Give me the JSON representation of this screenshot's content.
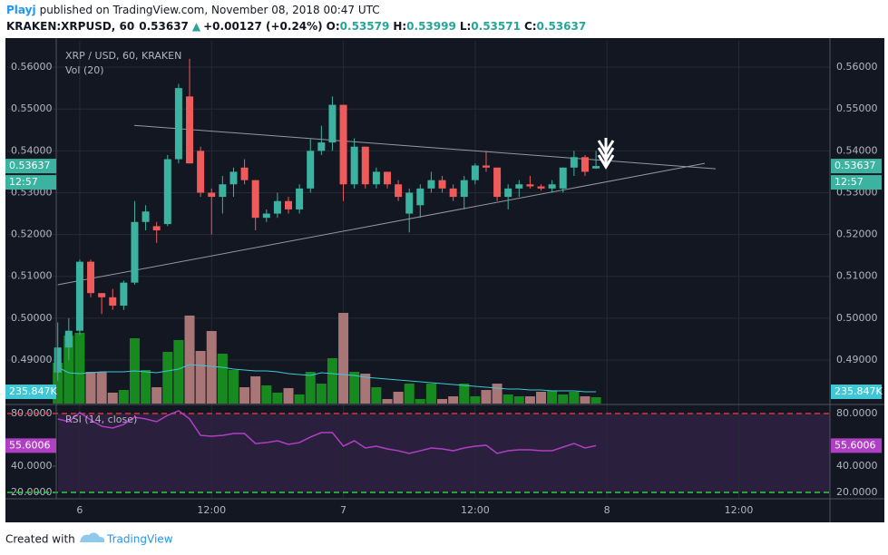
{
  "header": {
    "author": "Playj",
    "published": "published on TradingView.com, November 08, 2018 00:47 UTC",
    "symbol": "KRAKEN:XRPUSD, 60",
    "last": "0.53637",
    "arrow": "▲",
    "change": "+0.00127 (+0.24%)",
    "o_label": "O:",
    "o": "0.53579",
    "h_label": "H:",
    "h": "0.53999",
    "l_label": "L:",
    "l": "0.53571",
    "c_label": "C:",
    "c": "0.53637"
  },
  "footer": {
    "created": "Created with",
    "brand": "TradingView"
  },
  "chart_data": {
    "type": "candlestick",
    "title": "XRP / USD, 60, KRAKEN",
    "volume_title": "Vol (20)",
    "rsi_title": "RSI (14, close)",
    "up_color": "#3bb3a0",
    "down_color": "#ef5a5a",
    "x": [
      -2,
      -1,
      0,
      1,
      2,
      3,
      4,
      5,
      6,
      7,
      8,
      9,
      10,
      11,
      12,
      13,
      14,
      15,
      16,
      17,
      18,
      19,
      20,
      21,
      22,
      23,
      24,
      25,
      26,
      27,
      28,
      29,
      30,
      31,
      32,
      33,
      34,
      35,
      36,
      37,
      38,
      39,
      40,
      41,
      42,
      43,
      44,
      45,
      46,
      47
    ],
    "candles": {
      "open": [
        0.487,
        0.493,
        0.497,
        0.5135,
        0.506,
        0.505,
        0.503,
        0.5085,
        0.523,
        0.522,
        0.5225,
        0.538,
        0.553,
        0.54,
        0.53,
        0.529,
        0.532,
        0.536,
        0.533,
        0.524,
        0.525,
        0.528,
        0.526,
        0.531,
        0.54,
        0.542,
        0.551,
        0.532,
        0.541,
        0.532,
        0.535,
        0.532,
        0.525,
        0.527,
        0.531,
        0.533,
        0.531,
        0.529,
        0.533,
        0.5365,
        0.536,
        0.529,
        0.531,
        0.532,
        0.5315,
        0.531,
        0.531,
        0.536,
        0.5385,
        0.53579
      ],
      "high": [
        0.499,
        0.5,
        0.514,
        0.514,
        0.506,
        0.507,
        0.509,
        0.528,
        0.527,
        0.523,
        0.539,
        0.556,
        0.562,
        0.541,
        0.531,
        0.534,
        0.536,
        0.538,
        0.533,
        0.526,
        0.53,
        0.529,
        0.532,
        0.543,
        0.546,
        0.553,
        0.551,
        0.543,
        0.541,
        0.536,
        0.535,
        0.533,
        0.531,
        0.532,
        0.535,
        0.534,
        0.532,
        0.534,
        0.537,
        0.54,
        0.536,
        0.532,
        0.533,
        0.534,
        0.532,
        0.533,
        0.536,
        0.54,
        0.539,
        0.53999
      ],
      "low": [
        0.485,
        0.49,
        0.496,
        0.505,
        0.501,
        0.502,
        0.502,
        0.508,
        0.521,
        0.518,
        0.522,
        0.537,
        0.537,
        0.529,
        0.52,
        0.525,
        0.529,
        0.532,
        0.521,
        0.523,
        0.524,
        0.525,
        0.525,
        0.53,
        0.539,
        0.54,
        0.528,
        0.531,
        0.531,
        0.531,
        0.531,
        0.528,
        0.5205,
        0.524,
        0.53,
        0.53,
        0.528,
        0.526,
        0.532,
        0.535,
        0.528,
        0.526,
        0.529,
        0.531,
        0.5305,
        0.53,
        0.53,
        0.534,
        0.534,
        0.53571
      ],
      "close": [
        0.493,
        0.497,
        0.5135,
        0.506,
        0.505,
        0.503,
        0.5085,
        0.523,
        0.5255,
        0.521,
        0.538,
        0.555,
        0.537,
        0.53,
        0.529,
        0.532,
        0.535,
        0.533,
        0.524,
        0.525,
        0.528,
        0.526,
        0.531,
        0.54,
        0.542,
        0.551,
        0.532,
        0.541,
        0.532,
        0.535,
        0.532,
        0.529,
        0.53,
        0.531,
        0.533,
        0.531,
        0.529,
        0.533,
        0.5365,
        0.536,
        0.529,
        0.531,
        0.532,
        0.5315,
        0.531,
        0.532,
        0.536,
        0.5385,
        0.535,
        0.53637
      ]
    },
    "volume": [
      817000,
      1361000,
      1416000,
      635000,
      635000,
      218000,
      272000,
      1307000,
      672000,
      327000,
      1035000,
      1271000,
      1761000,
      1053000,
      1452000,
      998000,
      672000,
      327000,
      545000,
      363000,
      218000,
      309000,
      182000,
      635000,
      399000,
      908000,
      1815000,
      635000,
      599000,
      327000,
      91000,
      236000,
      399000,
      91000,
      399000,
      91000,
      145000,
      399000,
      145000,
      272000,
      399000,
      182000,
      145000,
      145000,
      236000,
      254000,
      182000,
      236000,
      145000,
      127000
    ],
    "volume_ma": [
      726000,
      617000,
      599000,
      617000,
      635000,
      635000,
      635000,
      653000,
      635000,
      617000,
      653000,
      690000,
      780000,
      762000,
      744000,
      726000,
      690000,
      672000,
      653000,
      653000,
      635000,
      599000,
      581000,
      563000,
      617000,
      599000,
      581000,
      563000,
      526000,
      508000,
      490000,
      472000,
      454000,
      436000,
      417000,
      399000,
      381000,
      363000,
      345000,
      327000,
      309000,
      290000,
      290000,
      272000,
      272000,
      254000,
      254000,
      254000,
      236000,
      235847
    ],
    "volume_ma_label": "235.847K",
    "volume_up_color": "#178a1f",
    "volume_down_color": "#a87676",
    "volume_ma_color": "#3fc7d6",
    "volume_ylim": [
      0,
      7260000
    ],
    "rsi": [
      75.9,
      73.8,
      80.7,
      75.2,
      70.3,
      69.0,
      71.7,
      77.2,
      75.9,
      73.8,
      78.6,
      82.1,
      75.9,
      63.4,
      62.8,
      63.4,
      64.8,
      64.8,
      57.2,
      57.9,
      59.3,
      56.6,
      57.9,
      62.1,
      65.5,
      65.5,
      55.2,
      59.3,
      53.8,
      55.2,
      53.1,
      51.7,
      49.7,
      51.7,
      53.8,
      53.1,
      51.7,
      53.8,
      55.2,
      55.9,
      49.7,
      51.7,
      52.4,
      52.4,
      51.7,
      51.7,
      54.5,
      57.2,
      53.8,
      55.6006
    ],
    "rsi_color": "#b03fc4",
    "rsi_ylim": [
      15.2,
      86.2
    ],
    "rsi_ticks": [
      {
        "value": 80,
        "label": "80.0000"
      },
      {
        "value": 40,
        "label": "40.0000"
      },
      {
        "value": 20,
        "label": "20.0000"
      }
    ],
    "rsi_upper": 80,
    "rsi_lower": 20,
    "last_price": 0.53637,
    "countdown": "12:57",
    "trendlines": [
      {
        "x": [
          4.96,
          57.9
        ],
        "y": [
          0.5461,
          0.5357
        ]
      },
      {
        "x": [
          -2,
          56.9
        ],
        "y": [
          0.508,
          0.537
        ]
      }
    ],
    "xlim": [
      -6.6,
      68.3
    ],
    "ylim": [
      0.4796,
      0.5663
    ],
    "xticks": [
      {
        "value": 0,
        "label": "6"
      },
      {
        "value": 12,
        "label": "12:00"
      },
      {
        "value": 24,
        "label": "7"
      },
      {
        "value": 36,
        "label": "12:00"
      },
      {
        "value": 48,
        "label": "8"
      },
      {
        "value": 60,
        "label": "12:00"
      }
    ],
    "yticks": [
      {
        "value": 0.56,
        "label": "0.56000"
      },
      {
        "value": 0.55,
        "label": "0.55000"
      },
      {
        "value": 0.54,
        "label": "0.54000"
      },
      {
        "value": 0.53,
        "label": "0.53000"
      },
      {
        "value": 0.52,
        "label": "0.52000"
      },
      {
        "value": 0.51,
        "label": "0.51000"
      },
      {
        "value": 0.5,
        "label": "0.50000"
      },
      {
        "value": 0.49,
        "label": "0.49000"
      }
    ],
    "grid": true
  }
}
